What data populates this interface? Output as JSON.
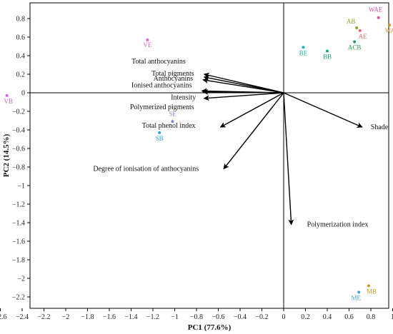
{
  "chart_data": {
    "type": "scatter",
    "subtype": "biplot",
    "xlabel": "PC1 (77.6%)",
    "ylabel": "PC2 (14.5%)",
    "xlim": [
      -2.7,
      1.1
    ],
    "ylim": [
      -2.4,
      0.95
    ],
    "x_ticks": [
      -2.6,
      -2.4,
      -2.2,
      -2,
      -1.8,
      -1.6,
      -1.4,
      -1.2,
      -1,
      -0.8,
      -0.6,
      -0.4,
      -0.2,
      0,
      0.2,
      0.4,
      0.6,
      0.8,
      1
    ],
    "x_tick_labels": [
      "−2.6",
      "−2.4",
      "−2.2",
      "−2",
      "−1.8",
      "−1.6",
      "−1.4",
      "−1.2",
      "−1",
      "−0.8",
      "−0.6",
      "−0.4",
      "−0.2",
      "0",
      "0.2",
      "0.4",
      "0.6",
      "0.8",
      "1"
    ],
    "y_ticks": [
      0.8,
      0.6,
      0.4,
      0.2,
      0,
      -0.2,
      -0.4,
      -0.6,
      -0.8,
      -1,
      -1.2,
      -1.4,
      -1.6,
      -1.8,
      -2,
      -2.2
    ],
    "y_tick_labels": [
      "0.8",
      "0.6",
      "0.4",
      "0.2",
      "0",
      "−0.2",
      "−0.4",
      "−0.6",
      "−0.8",
      "−1",
      "−1.2",
      "−1.4",
      "−1.6",
      "−1.8",
      "−2",
      "−2.2"
    ],
    "grid": false,
    "points": [
      {
        "label": "WAE",
        "x": 0.87,
        "y": 0.81,
        "color": "#e34fa2"
      },
      {
        "label": "WAB",
        "x": 0.97,
        "y": 0.73,
        "color": "#e08a1e"
      },
      {
        "label": "AB",
        "x": 0.67,
        "y": 0.7,
        "color": "#8aa32a"
      },
      {
        "label": "AE",
        "x": 0.7,
        "y": 0.67,
        "color": "#e06767"
      },
      {
        "label": "ACB",
        "x": 0.65,
        "y": 0.55,
        "color": "#1e9e4a"
      },
      {
        "label": "BE",
        "x": 0.18,
        "y": 0.49,
        "color": "#1eb5b5"
      },
      {
        "label": "BB",
        "x": 0.4,
        "y": 0.45,
        "color": "#1ea37a"
      },
      {
        "label": "VE",
        "x": -1.25,
        "y": 0.57,
        "color": "#e35fd0"
      },
      {
        "label": "VB",
        "x": -2.54,
        "y": -0.03,
        "color": "#d065d6"
      },
      {
        "label": "SE",
        "x": -1.02,
        "y": -0.31,
        "color": "#7f86d8"
      },
      {
        "label": "SB",
        "x": -1.14,
        "y": -0.43,
        "color": "#1fa6e0"
      },
      {
        "label": "MB",
        "x": 0.78,
        "y": -2.08,
        "color": "#d09a1f"
      },
      {
        "label": "ME",
        "x": 0.69,
        "y": -2.15,
        "color": "#3fa3e0"
      }
    ],
    "vectors": [
      {
        "label": "Total anthocyanins",
        "x": -0.73,
        "y": 0.2
      },
      {
        "label": "Total pigments",
        "x": -0.73,
        "y": 0.17
      },
      {
        "label": "Anthocyanins",
        "x": -0.74,
        "y": 0.14
      },
      {
        "label": "Ionised anthocyanins",
        "x": -0.75,
        "y": 0.02
      },
      {
        "label": "Intensity",
        "x": -0.74,
        "y": 0.01
      },
      {
        "label": "Polymerized pigments",
        "x": -0.73,
        "y": -0.06
      },
      {
        "label": "Total phenol index",
        "x": -0.58,
        "y": -0.37
      },
      {
        "label": "Degree of ionisation of anthocyanins",
        "x": -0.55,
        "y": -0.82
      },
      {
        "label": "Shade",
        "x": 0.72,
        "y": -0.37
      },
      {
        "label": "Polymerization index",
        "x": 0.07,
        "y": -1.42
      }
    ]
  },
  "colors": {
    "axis": "#000000",
    "arrow": "#000000"
  }
}
